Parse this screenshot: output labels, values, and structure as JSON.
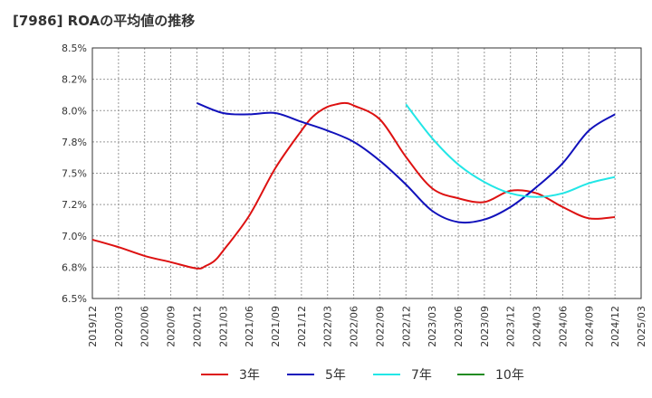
{
  "chart_data": {
    "type": "line",
    "title": "[7986]  ROAの平均値の推移",
    "xlabel": "",
    "ylabel": "",
    "ylim": [
      6.5,
      8.5
    ],
    "grid": true,
    "legend_position": "bottom",
    "y_ticks": [
      "6.5%",
      "6.8%",
      "7.0%",
      "7.2%",
      "7.5%",
      "7.8%",
      "8.0%",
      "8.2%",
      "8.5%"
    ],
    "x_ticks": [
      "2019/12",
      "2020/03",
      "2020/06",
      "2020/09",
      "2020/12",
      "2021/03",
      "2021/06",
      "2021/09",
      "2021/12",
      "2022/03",
      "2022/06",
      "2022/09",
      "2022/12",
      "2023/03",
      "2023/06",
      "2023/09",
      "2023/12",
      "2024/03",
      "2024/06",
      "2024/09",
      "2024/12",
      "2025/03"
    ],
    "series": [
      {
        "name": "3年",
        "color": "#dd1111",
        "points": [
          [
            "2019/12",
            6.97
          ],
          [
            "2020/03",
            6.91
          ],
          [
            "2020/06",
            6.84
          ],
          [
            "2020/09",
            6.79
          ],
          [
            "2020/12",
            6.74
          ],
          [
            "2021/01",
            6.76
          ],
          [
            "2021/02",
            6.8
          ],
          [
            "2021/03",
            6.88
          ],
          [
            "2021/06",
            7.16
          ],
          [
            "2021/09",
            7.54
          ],
          [
            "2021/12",
            7.84
          ],
          [
            "2022/01",
            7.93
          ],
          [
            "2022/02",
            7.99
          ],
          [
            "2022/03",
            8.03
          ],
          [
            "2022/04",
            8.05
          ],
          [
            "2022/05",
            8.06
          ],
          [
            "2022/06",
            8.04
          ],
          [
            "2022/09",
            7.93
          ],
          [
            "2022/12",
            7.63
          ],
          [
            "2023/03",
            7.38
          ],
          [
            "2023/06",
            7.3
          ],
          [
            "2023/09",
            7.27
          ],
          [
            "2023/12",
            7.36
          ],
          [
            "2024/03",
            7.34
          ],
          [
            "2024/06",
            7.23
          ],
          [
            "2024/09",
            7.14
          ],
          [
            "2024/12",
            7.15
          ]
        ]
      },
      {
        "name": "5年",
        "color": "#1111bb",
        "points": [
          [
            "2020/12",
            8.06
          ],
          [
            "2021/03",
            7.98
          ],
          [
            "2021/06",
            7.97
          ],
          [
            "2021/09",
            7.98
          ],
          [
            "2021/12",
            7.91
          ],
          [
            "2022/03",
            7.84
          ],
          [
            "2022/06",
            7.75
          ],
          [
            "2022/09",
            7.6
          ],
          [
            "2022/12",
            7.41
          ],
          [
            "2023/03",
            7.2
          ],
          [
            "2023/06",
            7.11
          ],
          [
            "2023/09",
            7.13
          ],
          [
            "2023/12",
            7.23
          ],
          [
            "2024/03",
            7.39
          ],
          [
            "2024/06",
            7.58
          ],
          [
            "2024/09",
            7.84
          ],
          [
            "2024/12",
            7.97
          ]
        ]
      },
      {
        "name": "7年",
        "color": "#22e6e6",
        "points": [
          [
            "2022/12",
            8.05
          ],
          [
            "2023/03",
            7.78
          ],
          [
            "2023/06",
            7.57
          ],
          [
            "2023/09",
            7.43
          ],
          [
            "2023/12",
            7.34
          ],
          [
            "2024/03",
            7.31
          ],
          [
            "2024/06",
            7.34
          ],
          [
            "2024/09",
            7.42
          ],
          [
            "2024/12",
            7.47
          ]
        ]
      },
      {
        "name": "10年",
        "color": "#228b22",
        "points": []
      }
    ]
  }
}
